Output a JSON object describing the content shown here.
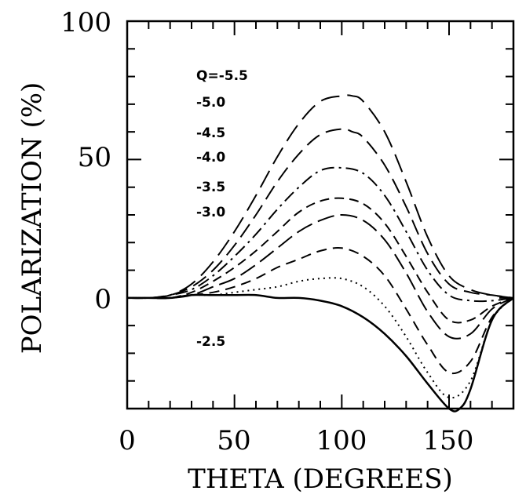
{
  "chart_data": {
    "type": "line",
    "title": "",
    "xlabel": "THETA (DEGREES)",
    "ylabel": "POLARIZATION (%)",
    "xlim": [
      0,
      180
    ],
    "ylim": [
      -40,
      100
    ],
    "x_ticks": [
      "0",
      "50",
      "100",
      "150"
    ],
    "y_ticks": [
      "0",
      "50",
      "100"
    ],
    "grid": false,
    "legend": "inline labels at upper-left and lower-left",
    "series": [
      {
        "name": "Q=-5.5",
        "dash": "long-dash",
        "x": [
          0,
          10,
          20,
          30,
          40,
          50,
          60,
          70,
          80,
          90,
          100,
          105,
          110,
          120,
          130,
          140,
          150,
          160,
          170,
          180
        ],
        "y": [
          0,
          0,
          1,
          5,
          13,
          24,
          37,
          51,
          63,
          71,
          73,
          73,
          71,
          60,
          42,
          22,
          8,
          3,
          1,
          0
        ]
      },
      {
        "name": "-5.0",
        "dash": "long-dash-2",
        "x": [
          0,
          10,
          20,
          30,
          40,
          50,
          60,
          70,
          80,
          90,
          100,
          105,
          110,
          120,
          130,
          140,
          150,
          160,
          170,
          180
        ],
        "y": [
          0,
          0,
          1,
          4,
          10,
          19,
          30,
          42,
          52,
          59,
          61,
          60,
          58,
          48,
          33,
          16,
          5,
          2,
          1,
          0
        ]
      },
      {
        "name": "-4.5",
        "dash": "dash-dot",
        "x": [
          0,
          10,
          20,
          30,
          40,
          50,
          60,
          70,
          80,
          90,
          100,
          110,
          120,
          130,
          140,
          150,
          160,
          170,
          180
        ],
        "y": [
          0,
          0,
          1,
          3,
          8,
          15,
          23,
          32,
          40,
          46,
          47,
          45,
          37,
          24,
          10,
          1,
          -1,
          -1,
          0
        ]
      },
      {
        "name": "-4.0",
        "dash": "short-dash",
        "x": [
          0,
          10,
          20,
          30,
          40,
          50,
          60,
          70,
          80,
          90,
          100,
          110,
          120,
          130,
          140,
          150,
          160,
          170,
          180
        ],
        "y": [
          0,
          0,
          0,
          2,
          6,
          11,
          17,
          24,
          31,
          35,
          36,
          34,
          27,
          15,
          2,
          -8,
          -8,
          -3,
          0
        ]
      },
      {
        "name": "-3.5",
        "dash": "long-dash-3",
        "x": [
          0,
          10,
          20,
          30,
          40,
          50,
          60,
          70,
          80,
          90,
          100,
          110,
          120,
          130,
          140,
          150,
          160,
          170,
          180
        ],
        "y": [
          0,
          0,
          0,
          1,
          4,
          7,
          12,
          18,
          24,
          28,
          30,
          28,
          21,
          9,
          -5,
          -14,
          -13,
          -4,
          0
        ]
      },
      {
        "name": "-3.0",
        "dash": "dash",
        "x": [
          0,
          10,
          20,
          30,
          40,
          50,
          60,
          70,
          80,
          90,
          100,
          110,
          120,
          130,
          140,
          150,
          160,
          170,
          180
        ],
        "y": [
          0,
          0,
          0,
          1,
          2,
          4,
          7,
          11,
          14,
          17,
          18,
          15,
          8,
          -4,
          -17,
          -27,
          -23,
          -7,
          0
        ]
      },
      {
        "name": "",
        "dash": "dotted",
        "x": [
          0,
          10,
          20,
          30,
          40,
          50,
          60,
          70,
          80,
          90,
          100,
          110,
          120,
          130,
          140,
          150,
          160,
          170,
          180
        ],
        "y": [
          0,
          0,
          0,
          1,
          1,
          2,
          3,
          4,
          6,
          7,
          7,
          4,
          -3,
          -14,
          -27,
          -36,
          -30,
          -8,
          0
        ]
      },
      {
        "name": "-2.5",
        "dash": "solid",
        "x": [
          0,
          10,
          20,
          30,
          40,
          50,
          60,
          70,
          80,
          90,
          100,
          110,
          120,
          130,
          140,
          150,
          155,
          160,
          170,
          180
        ],
        "y": [
          0,
          0,
          0,
          1,
          1,
          1,
          1,
          0,
          0,
          -1,
          -3,
          -7,
          -13,
          -21,
          -31,
          -40,
          -40,
          -33,
          -8,
          0
        ]
      }
    ]
  }
}
